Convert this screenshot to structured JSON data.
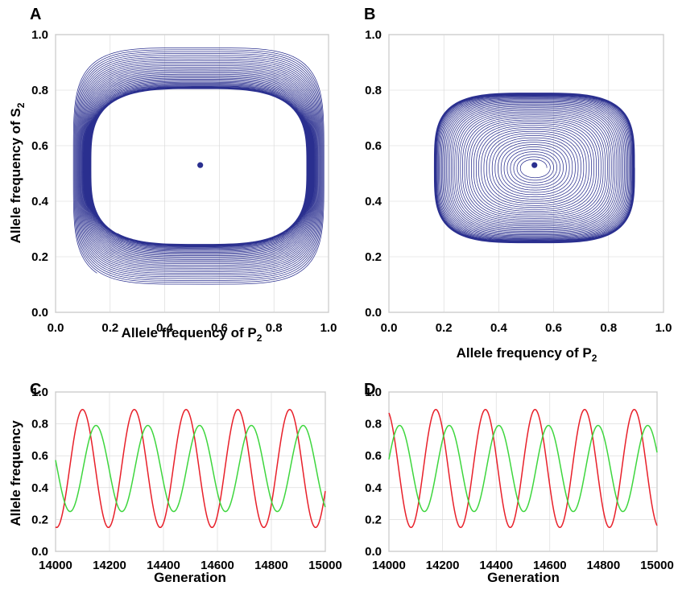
{
  "chart_data": [
    {
      "panel": "A",
      "type": "line",
      "subtype": "phase-portrait",
      "xlabel": "Allele frequency of P",
      "xlabel_sub": "2",
      "ylabel": "Allele frequency of S",
      "ylabel_sub": "2",
      "xlim": [
        0,
        1
      ],
      "ylim": [
        0,
        1
      ],
      "xticks": [
        "0.0",
        "0.2",
        "0.4",
        "0.6",
        "0.8",
        "1.0"
      ],
      "yticks": [
        "0.0",
        "0.2",
        "0.4",
        "0.6",
        "0.8",
        "1.0"
      ],
      "equilibrium": {
        "x": 0.53,
        "y": 0.53
      },
      "spiral": {
        "direction": "inward",
        "outer_start": {
          "x": 0.12,
          "y": 0.1
        },
        "outer_extent": {
          "x": [
            0.07,
            0.99
          ],
          "y": [
            0.08,
            0.93
          ]
        },
        "limit_cycle": {
          "x": [
            0.11,
            0.9
          ],
          "y": [
            0.24,
            0.8
          ]
        }
      },
      "line_color": "#2a2f8f"
    },
    {
      "panel": "B",
      "type": "line",
      "subtype": "phase-portrait",
      "xlabel": "Allele frequency of P",
      "xlabel_sub": "2",
      "ylabel": "",
      "xlim": [
        0,
        1
      ],
      "ylim": [
        0,
        1
      ],
      "xticks": [
        "0.0",
        "0.2",
        "0.4",
        "0.6",
        "0.8",
        "1.0"
      ],
      "yticks": [
        "0.0",
        "0.2",
        "0.4",
        "0.6",
        "0.8",
        "1.0"
      ],
      "equilibrium": {
        "x": 0.53,
        "y": 0.53
      },
      "spiral": {
        "direction": "outward",
        "inner_extent": {
          "x": [
            0.49,
            0.57
          ],
          "y": [
            0.51,
            0.56
          ]
        },
        "limit_cycle": {
          "x": [
            0.16,
            0.89
          ],
          "y": [
            0.25,
            0.79
          ]
        }
      },
      "line_color": "#2a2f8f"
    },
    {
      "panel": "C",
      "type": "line",
      "xlabel": "Generation",
      "ylabel": "Allele frequency",
      "xlim": [
        14000,
        15000
      ],
      "ylim": [
        0,
        1
      ],
      "xticks": [
        "14000",
        "14200",
        "14400",
        "14600",
        "14800",
        "15000"
      ],
      "yticks": [
        "0.0",
        "0.2",
        "0.4",
        "0.6",
        "0.8",
        "1.0"
      ],
      "period": 192,
      "series": [
        {
          "color": "#e8202a",
          "mean": 0.52,
          "amplitude": 0.37,
          "first_peak": 14100
        },
        {
          "color": "#3ed63e",
          "mean": 0.52,
          "amplitude": 0.27,
          "first_peak": 14150
        }
      ]
    },
    {
      "panel": "D",
      "type": "line",
      "xlabel": "Generation",
      "ylabel": "",
      "xlim": [
        14000,
        15000
      ],
      "ylim": [
        0,
        1
      ],
      "xticks": [
        "14000",
        "14200",
        "14400",
        "14600",
        "14800",
        "15000"
      ],
      "yticks": [
        "0.0",
        "0.2",
        "0.4",
        "0.6",
        "0.8",
        "1.0"
      ],
      "period": 185,
      "series": [
        {
          "color": "#e8202a",
          "mean": 0.52,
          "amplitude": 0.37,
          "first_peak": 14175
        },
        {
          "color": "#3ed63e",
          "mean": 0.52,
          "amplitude": 0.27,
          "first_peak": 14040
        }
      ]
    }
  ]
}
